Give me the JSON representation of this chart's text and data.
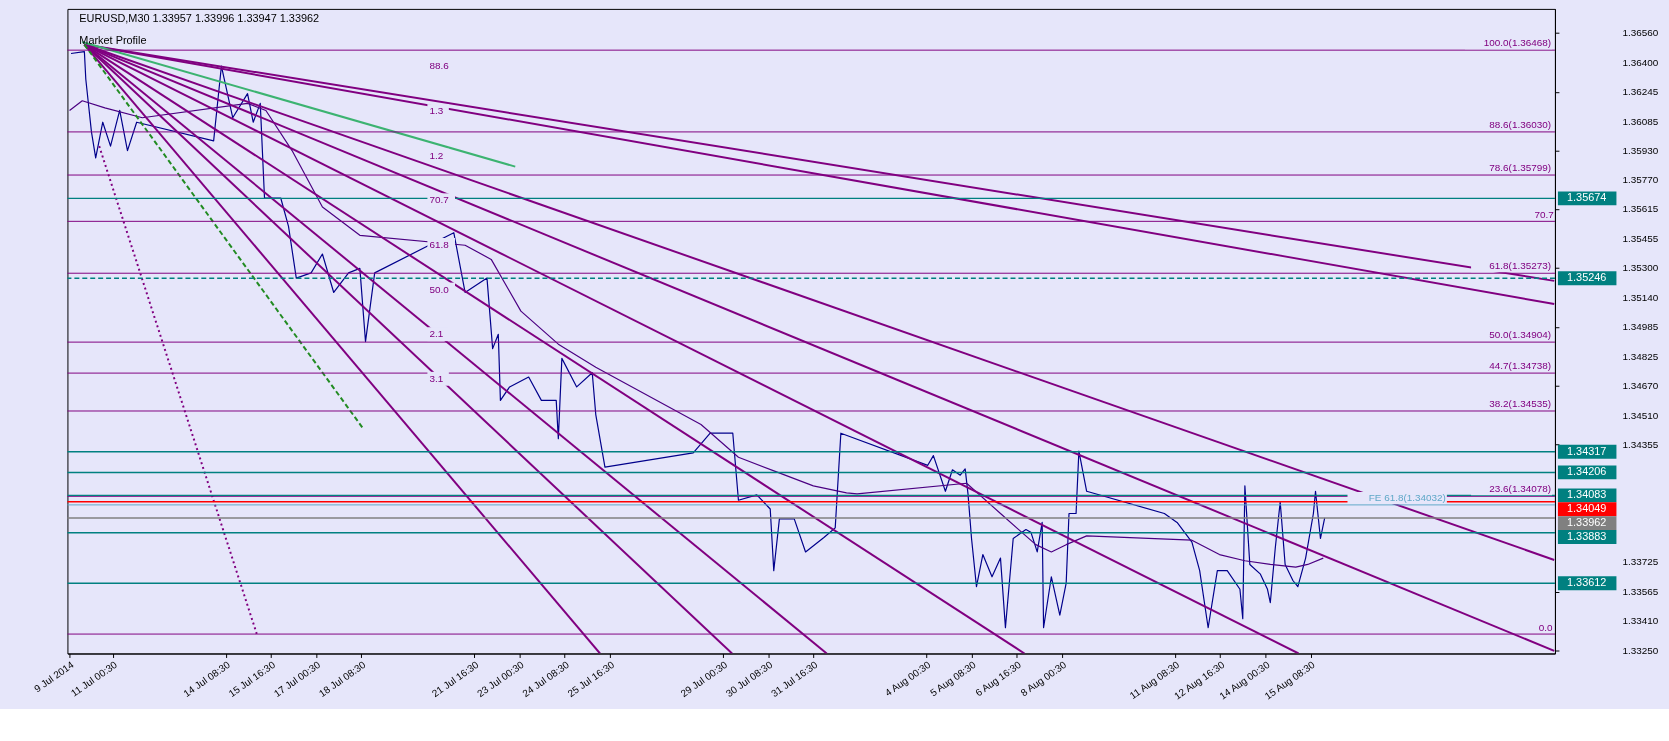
{
  "chart_data": {
    "type": "line",
    "title": "EURUSD,M30  1.33957 1.33996 1.33947 1.33962",
    "annotations": [
      "Market Profile",
      "88.6",
      "1.3",
      "1.2",
      "70.7",
      "61.8",
      "50.0",
      "2.1",
      "3.1",
      {
        "text": "70.7",
        "x": "2014-08-21T23:00",
        "y": 1.35551
      },
      {
        "text": "0.0",
        "x": "2014-08-22T02:00",
        "y": 1.3334
      }
    ],
    "xlim": [
      "2014-07-09T16:30",
      "2014-08-22T13:30"
    ],
    "ylim": [
      1.33236,
      1.36689
    ],
    "xticks": [
      {
        "value": "2014-07-09T18:00",
        "label": "9 Jul 2014"
      },
      {
        "value": "2014-07-11T00:30",
        "label": "11 Jul 00:30"
      },
      {
        "value": "2014-07-14T08:30",
        "label": "14 Jul 08:30"
      },
      {
        "value": "2014-07-15T16:30",
        "label": "15 Jul 16:30"
      },
      {
        "value": "2014-07-17T00:30",
        "label": "17 Jul 00:30"
      },
      {
        "value": "2014-07-18T08:30",
        "label": "18 Jul 08:30"
      },
      {
        "value": "2014-07-21T16:30",
        "label": "21 Jul 16:30"
      },
      {
        "value": "2014-07-23T00:30",
        "label": "23 Jul 00:30"
      },
      {
        "value": "2014-07-24T08:30",
        "label": "24 Jul 08:30"
      },
      {
        "value": "2014-07-25T16:30",
        "label": "25 Jul 16:30"
      },
      {
        "value": "2014-07-29T00:30",
        "label": "29 Jul 00:30"
      },
      {
        "value": "2014-07-30T08:30",
        "label": "30 Jul 08:30"
      },
      {
        "value": "2014-07-31T16:30",
        "label": "31 Jul 16:30"
      },
      {
        "value": "2014-08-04T00:30",
        "label": "4 Aug 00:30"
      },
      {
        "value": "2014-08-05T08:30",
        "label": "5 Aug 08:30"
      },
      {
        "value": "2014-08-06T16:30",
        "label": "6 Aug 16:30"
      },
      {
        "value": "2014-08-08T00:30",
        "label": "8 Aug 00:30"
      },
      {
        "value": "2014-08-11T08:30",
        "label": "11 Aug 08:30"
      },
      {
        "value": "2014-08-12T16:30",
        "label": "12 Aug 16:30"
      },
      {
        "value": "2014-08-14T00:30",
        "label": "14 Aug 00:30"
      },
      {
        "value": "2014-08-15T08:30",
        "label": "15 Aug 08:30"
      }
    ],
    "yticks": [
      {
        "value": 1.3656,
        "label": "1.36560"
      },
      {
        "value": 1.364,
        "label": "1.36400"
      },
      {
        "value": 1.36245,
        "label": "1.36245"
      },
      {
        "value": 1.36085,
        "label": "1.36085"
      },
      {
        "value": 1.3593,
        "label": "1.35930"
      },
      {
        "value": 1.3577,
        "label": "1.35770"
      },
      {
        "value": 1.35615,
        "label": "1.35615"
      },
      {
        "value": 1.35455,
        "label": "1.35455"
      },
      {
        "value": 1.353,
        "label": "1.35300"
      },
      {
        "value": 1.3514,
        "label": "1.35140"
      },
      {
        "value": 1.34985,
        "label": "1.34985"
      },
      {
        "value": 1.34825,
        "label": "1.34825"
      },
      {
        "value": 1.3467,
        "label": "1.34670"
      },
      {
        "value": 1.3451,
        "label": "1.34510"
      },
      {
        "value": 1.34355,
        "label": "1.34355"
      },
      {
        "value": 1.33725,
        "label": "1.33725"
      },
      {
        "value": 1.33565,
        "label": "1.33565"
      },
      {
        "value": 1.3341,
        "label": "1.33410"
      },
      {
        "value": 1.3325,
        "label": "1.33250"
      }
    ],
    "grid": false,
    "series": [
      {
        "color": "#00008b",
        "x": [
          "2014-07-09T19:00",
          "2014-07-10T04:30",
          "2014-07-10T05:30",
          "2014-07-10T09:30",
          "2014-07-10T12:30",
          "2014-07-10T17:30",
          "2014-07-10T23:00",
          "2014-07-11T05:30",
          "2014-07-11T11:00",
          "2014-07-11T17:30",
          "2014-07-14T00:00",
          "2014-07-14T05:30",
          "2014-07-14T13:30",
          "2014-07-15T00:00",
          "2014-07-15T04:00",
          "2014-07-15T09:00",
          "2014-07-15T12:00",
          "2014-07-15T23:30",
          "2014-07-16T05:00",
          "2014-07-16T10:30",
          "2014-07-16T21:00",
          "2014-07-17T05:00",
          "2014-07-17T13:00",
          "2014-07-17T23:30",
          "2014-07-18T07:30",
          "2014-07-18T11:30",
          "2014-07-18T18:00",
          "2014-07-21T02:00",
          "2014-07-21T10:00",
          "2014-07-22T01:30",
          "2014-07-22T05:30",
          "2014-07-22T09:30",
          "2014-07-22T11:00",
          "2014-07-22T17:30",
          "2014-07-23T07:00",
          "2014-07-23T16:00",
          "2014-07-24T02:30",
          "2014-07-24T04:00",
          "2014-07-24T06:30",
          "2014-07-24T17:00",
          "2014-07-25T04:00",
          "2014-07-25T06:30",
          "2014-07-25T13:00",
          "2014-07-28T03:30",
          "2014-07-28T15:30",
          "2014-07-29T07:30",
          "2014-07-29T11:30",
          "2014-07-30T00:30",
          "2014-07-30T10:00",
          "2014-07-30T12:30",
          "2014-07-30T16:30",
          "2014-07-31T03:00",
          "2014-07-31T11:00",
          "2014-08-01T00:00",
          "2014-08-01T08:00",
          "2014-08-01T12:00",
          "2014-08-04T01:30",
          "2014-08-04T05:30",
          "2014-08-04T14:00",
          "2014-08-04T19:00",
          "2014-08-05T00:30",
          "2014-08-05T04:00",
          "2014-08-05T06:00",
          "2014-08-05T08:30",
          "2014-08-05T12:00",
          "2014-08-05T16:30",
          "2014-08-05T23:00",
          "2014-08-06T05:00",
          "2014-08-06T08:30",
          "2014-08-06T14:00",
          "2014-08-06T23:00",
          "2014-08-07T02:30",
          "2014-08-07T07:00",
          "2014-08-07T10:30",
          "2014-08-07T11:30",
          "2014-08-07T17:00",
          "2014-08-07T23:00",
          "2014-08-08T03:30",
          "2014-08-08T05:30",
          "2014-08-08T10:30",
          "2014-08-08T12:30",
          "2014-08-08T18:00",
          "2014-08-11T01:00",
          "2014-08-11T10:00",
          "2014-08-11T20:30",
          "2014-08-12T02:00",
          "2014-08-12T08:00",
          "2014-08-12T14:30",
          "2014-08-12T21:30",
          "2014-08-13T06:30",
          "2014-08-13T08:30",
          "2014-08-13T10:00",
          "2014-08-13T13:30",
          "2014-08-13T21:00",
          "2014-08-14T02:00",
          "2014-08-14T04:00",
          "2014-08-14T07:30",
          "2014-08-14T11:00",
          "2014-08-14T14:30",
          "2014-08-14T20:00",
          "2014-08-14T23:30",
          "2014-08-15T05:00",
          "2014-08-15T10:30",
          "2014-08-15T12:00",
          "2014-08-15T15:30",
          "2014-08-15T18:30"
        ],
        "values": [
          1.3645,
          1.3646,
          1.36312,
          1.3603,
          1.35891,
          1.36082,
          1.35954,
          1.36145,
          1.3593,
          1.36082,
          1.35982,
          1.36383,
          1.36106,
          1.36235,
          1.36082,
          1.36183,
          1.35676,
          1.35676,
          1.35524,
          1.35247,
          1.35275,
          1.35376,
          1.3517,
          1.35275,
          1.35299,
          1.34907,
          1.35275,
          1.3549,
          1.3517,
          1.35247,
          1.34869,
          1.34946,
          1.34592,
          1.34664,
          1.34717,
          1.34592,
          1.34592,
          1.34387,
          1.34817,
          1.34664,
          1.3474,
          1.34516,
          1.34234,
          1.34311,
          1.34416,
          1.34416,
          1.34057,
          1.34086,
          1.3401,
          1.3368,
          1.33957,
          1.33957,
          1.3378,
          1.33857,
          1.33909,
          1.34416,
          1.34244,
          1.34296,
          1.34105,
          1.3422,
          1.34191,
          1.34225,
          1.34091,
          1.33852,
          1.33594,
          1.33766,
          1.33647,
          1.33747,
          1.33374,
          1.33852,
          1.339,
          1.33886,
          1.3378,
          1.33938,
          1.33374,
          1.33647,
          1.33441,
          1.33613,
          1.33986,
          1.33986,
          1.3432,
          1.34105,
          1.33986,
          1.33938,
          1.33833,
          1.3368,
          1.33374,
          1.3368,
          1.3368,
          1.3358,
          1.33422,
          1.34134,
          1.33713,
          1.33661,
          1.3358,
          1.33508,
          1.338,
          1.34048,
          1.33713,
          1.33627,
          1.33594,
          1.33747,
          1.33986,
          1.34105,
          1.33852,
          1.33962
        ]
      },
      {
        "color": "#4b0082",
        "x": [
          "2014-07-09T18:00",
          "2014-07-10T03:00",
          "2014-07-10T19:00",
          "2014-07-11T21:30",
          "2014-07-15T00:00",
          "2014-07-15T13:00",
          "2014-07-16T07:30",
          "2014-07-17T05:00",
          "2014-07-18T07:30",
          "2014-07-21T10:00",
          "2014-07-22T04:30",
          "2014-07-23T01:30",
          "2014-07-24T04:00",
          "2014-07-25T06:30",
          "2014-07-28T09:00",
          "2014-07-29T11:30",
          "2014-07-30T14:00",
          "2014-07-31T16:30",
          "2014-08-01T16:00",
          "2014-08-01T23:30",
          "2014-08-05T05:00",
          "2014-08-06T05:00",
          "2014-08-07T06:00",
          "2014-08-07T17:00",
          "2014-08-08T03:30",
          "2014-08-08T18:00",
          "2014-08-11T20:30",
          "2014-08-12T16:00",
          "2014-08-13T10:00",
          "2014-08-14T04:00",
          "2014-08-14T22:00",
          "2014-08-15T06:30",
          "2014-08-15T17:30"
        ],
        "values": [
          1.36145,
          1.36197,
          1.36159,
          1.36106,
          1.36183,
          1.36145,
          1.3593,
          1.35628,
          1.35476,
          1.35423,
          1.35347,
          1.3507,
          1.34893,
          1.34769,
          1.34463,
          1.34287,
          1.3421,
          1.34134,
          1.34096,
          1.34091,
          1.34148,
          1.33986,
          1.33819,
          1.3378,
          1.33819,
          1.33866,
          1.33843,
          1.33766,
          1.33733,
          1.33713,
          1.33699,
          1.33713,
          1.33747
        ]
      },
      {
        "color": "#800080",
        "x": [
          "2014-07-10T04:30",
          "2014-08-22T13:00"
        ],
        "values": [
          1.36498,
          1.35232
        ]
      },
      {
        "color": "#800080",
        "x": [
          "2014-07-10T04:30",
          "2014-08-22T13:00"
        ],
        "values": [
          1.36498,
          1.35108
        ]
      },
      {
        "color": "#800080",
        "x": [
          "2014-07-10T04:30",
          "2014-08-22T13:00"
        ],
        "values": [
          1.36498,
          1.33737
        ]
      },
      {
        "color": "#800080",
        "x": [
          "2014-07-10T04:30",
          "2014-08-22T13:00"
        ],
        "values": [
          1.36498,
          1.3325
        ]
      },
      {
        "color": "#800080",
        "x": [
          "2014-07-10T04:30",
          "2014-08-15T00:00"
        ],
        "values": [
          1.36498,
          1.33236
        ]
      },
      {
        "color": "#800080",
        "x": [
          "2014-07-10T04:30",
          "2014-08-06T22:00"
        ],
        "values": [
          1.36498,
          1.33236
        ]
      },
      {
        "color": "#800080",
        "x": [
          "2014-07-10T04:30",
          "2014-08-01T02:00"
        ],
        "values": [
          1.36498,
          1.33236
        ]
      },
      {
        "color": "#800080",
        "x": [
          "2014-07-10T04:30",
          "2014-07-29T07:00"
        ],
        "values": [
          1.36498,
          1.33236
        ]
      },
      {
        "color": "#800080",
        "x": [
          "2014-07-10T04:30",
          "2014-07-25T09:30"
        ],
        "values": [
          1.36498,
          1.33236
        ]
      },
      {
        "color": "#3cb371",
        "x": [
          "2014-07-10T03:00",
          "2014-07-22T21:30"
        ],
        "values": [
          1.36512,
          1.35844
        ]
      },
      {
        "color": "#228b22",
        "line_style": "dashed",
        "x": [
          "2014-07-10T04:30",
          "2014-07-18T10:00"
        ],
        "values": [
          1.36498,
          1.34439
        ]
      },
      {
        "color": "#800080",
        "line_style": "dotted",
        "x": [
          "2014-07-10T15:00",
          "2014-07-15T06:30"
        ],
        "values": [
          1.35954,
          1.33341
        ]
      }
    ],
    "ref_lines": [
      {
        "axis": "y",
        "value": 1.36468,
        "label": "100.0(1.36468)",
        "color": "#800080"
      },
      {
        "axis": "y",
        "value": 1.3603,
        "label": "88.6(1.36030)",
        "color": "#800080"
      },
      {
        "axis": "y",
        "value": 1.35799,
        "label": "78.6(1.35799)",
        "color": "#800080"
      },
      {
        "axis": "y",
        "value": 1.35551,
        "color": "#800080"
      },
      {
        "axis": "y",
        "value": 1.35273,
        "label": "61.8(1.35273)",
        "color": "#800080"
      },
      {
        "axis": "y",
        "value": 1.34904,
        "label": "50.0(1.34904)",
        "color": "#800080"
      },
      {
        "axis": "y",
        "value": 1.34738,
        "label": "44.7(1.34738)",
        "color": "#800080"
      },
      {
        "axis": "y",
        "value": 1.34535,
        "label": "38.2(1.34535)",
        "color": "#800080"
      },
      {
        "axis": "y",
        "value": 1.34078,
        "label": "23.6(1.34078)",
        "color": "#800080"
      },
      {
        "axis": "y",
        "value": 1.3334,
        "color": "#800080"
      },
      {
        "axis": "y",
        "value": 1.34032,
        "label": "FE 61.8(1.34032)",
        "color": "#5fa8c8"
      },
      {
        "axis": "y",
        "value": 1.35674,
        "label": "1.35674",
        "color": "#008080"
      },
      {
        "axis": "y",
        "value": 1.35246,
        "label": "1.35246",
        "color": "#008080",
        "line_style": "dashed"
      },
      {
        "axis": "y",
        "value": 1.34317,
        "label": "1.34317",
        "color": "#008080"
      },
      {
        "axis": "y",
        "value": 1.34206,
        "label": "1.34206",
        "color": "#008080"
      },
      {
        "axis": "y",
        "value": 1.34083,
        "label": "1.34083",
        "color": "#008080"
      },
      {
        "axis": "y",
        "value": 1.34049,
        "label": "1.34049",
        "color": "#ff0000"
      },
      {
        "axis": "y",
        "value": 1.33962,
        "label": "1.33962",
        "color": "#808080"
      },
      {
        "axis": "y",
        "value": 1.33883,
        "label": "1.33883",
        "color": "#008080"
      },
      {
        "axis": "y",
        "value": 1.33612,
        "label": "1.33612",
        "color": "#008080"
      }
    ]
  }
}
